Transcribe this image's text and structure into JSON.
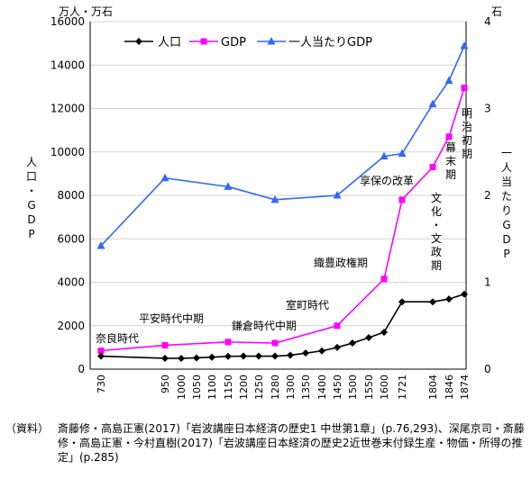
{
  "chart_data": {
    "type": "line",
    "y_unit_left": "万人・万石",
    "y_unit_right": "石",
    "ylabel_left": "人口・GDP",
    "ylabel_right": "一人当たりGDP",
    "ylim_left": [
      0,
      16000
    ],
    "ylim_right": [
      0,
      4
    ],
    "yticks_left": [
      "0",
      "2000",
      "4000",
      "6000",
      "8000",
      "10000",
      "12000",
      "14000",
      "16000"
    ],
    "yticks_right": [
      "0",
      "1",
      "2",
      "3",
      "4"
    ],
    "x_tick_labels": [
      "730",
      "950",
      "1000",
      "1050",
      "1100",
      "1150",
      "1200",
      "1250",
      "1280",
      "1300",
      "1350",
      "1400",
      "1450",
      "1500",
      "1550",
      "1600",
      "1721",
      "1804",
      "1846",
      "1874"
    ],
    "grid": "horizontal",
    "legend_position": "top-left",
    "series": [
      {
        "name": "人口",
        "axis": "left",
        "color": "#000000",
        "marker": "diamond",
        "points": [
          [
            730,
            600
          ],
          [
            950,
            500
          ],
          [
            1000,
            500
          ],
          [
            1050,
            520
          ],
          [
            1100,
            550
          ],
          [
            1150,
            590
          ],
          [
            1200,
            600
          ],
          [
            1250,
            600
          ],
          [
            1280,
            600
          ],
          [
            1300,
            640
          ],
          [
            1350,
            740
          ],
          [
            1400,
            840
          ],
          [
            1450,
            1000
          ],
          [
            1500,
            1200
          ],
          [
            1550,
            1450
          ],
          [
            1600,
            1700
          ],
          [
            1721,
            3100
          ],
          [
            1804,
            3100
          ],
          [
            1846,
            3230
          ],
          [
            1874,
            3450
          ]
        ]
      },
      {
        "name": "GDP",
        "axis": "left",
        "color": "#ff00ff",
        "marker": "square",
        "points": [
          [
            730,
            850
          ],
          [
            950,
            1100
          ],
          [
            1150,
            1250
          ],
          [
            1280,
            1200
          ],
          [
            1450,
            2000
          ],
          [
            1600,
            4150
          ],
          [
            1721,
            7800
          ],
          [
            1804,
            9300
          ],
          [
            1846,
            10700
          ],
          [
            1874,
            12950
          ]
        ]
      },
      {
        "name": "一人当たりGDP",
        "axis": "right",
        "color": "#3366ff",
        "marker": "triangle",
        "points": [
          [
            730,
            1.42
          ],
          [
            950,
            2.2
          ],
          [
            1150,
            2.1
          ],
          [
            1280,
            1.95
          ],
          [
            1450,
            2.0
          ],
          [
            1600,
            2.45
          ],
          [
            1721,
            2.48
          ],
          [
            1804,
            3.05
          ],
          [
            1846,
            3.32
          ],
          [
            1874,
            3.72
          ]
        ]
      }
    ],
    "annotations": [
      {
        "text": "奈良時代",
        "vertical": false
      },
      {
        "text": "平安時代中期",
        "vertical": false
      },
      {
        "text": "鎌倉時代中期",
        "vertical": false
      },
      {
        "text": "室町時代",
        "vertical": false
      },
      {
        "text": "織豊政権期",
        "vertical": false
      },
      {
        "text": "享保の改革",
        "vertical": false
      },
      {
        "text": "文化・文政期",
        "vertical": true
      },
      {
        "text": "幕末期",
        "vertical": true
      },
      {
        "text": "明治初期",
        "vertical": true
      }
    ]
  },
  "source": {
    "tag": "（資料）",
    "text": "斎藤修・高島正憲(2017)「岩波講座日本経済の歴史1 中世第1章」(p.76,293)、深尾京司・斎藤修・高島正憲・今村直樹(2017)「岩波講座日本経済の歴史2近世巻末付録生産・物価・所得の推定」(p.285)"
  }
}
